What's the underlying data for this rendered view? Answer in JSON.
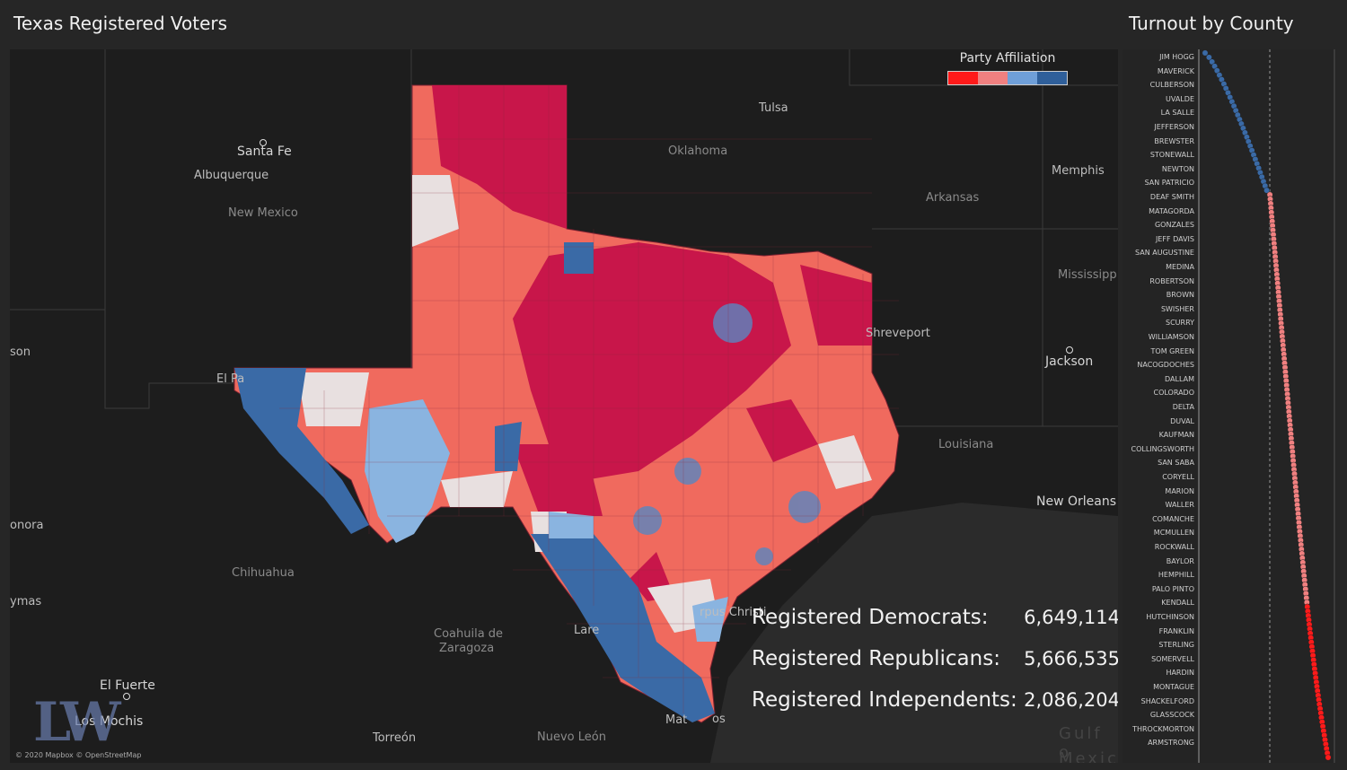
{
  "header": {
    "title": "Texas Registered Voters",
    "side_title": "Turnout by County"
  },
  "legend": {
    "title": "Party Affiliation",
    "colors": [
      "#ff1a1a",
      "#f08080",
      "#6f9fd8",
      "#2f5f9a"
    ]
  },
  "colors": {
    "strong_rep": "#c8164a",
    "lean_rep": "#f06a5e",
    "neutral": "#e8e0e0",
    "lean_dem": "#8ab4e0",
    "strong_dem": "#3a6aa6",
    "background": "#1d1d1d"
  },
  "map": {
    "places": [
      "Santa Fe",
      "Albuquerque",
      "New Mexico",
      "Tulsa",
      "Oklahoma",
      "Memphis",
      "Arkansas",
      "Mississipp",
      "Jackson",
      "Shreveport",
      "Louisiana",
      "New Orleans",
      "Chihuahua",
      "Coahuila de",
      "Zaragoza",
      "El Fuerte",
      "Los Mochis",
      "Torreón",
      "Nuevo León",
      "onora",
      "son",
      "ymas",
      "El Pa",
      "Lare",
      "rpus Christi",
      "Mat",
      "os",
      "Gulf o",
      "Mexic"
    ],
    "copyright": "© 2020 Mapbox © OpenStreetMap",
    "logo": "LW"
  },
  "stats": [
    {
      "label": "Registered Democrats:",
      "value": "6,649,114"
    },
    {
      "label": "Registered Republicans:",
      "value": "5,666,535"
    },
    {
      "label": "Registered Independents:",
      "value": "2,086,204"
    }
  ],
  "turnout": {
    "county_labels": [
      "JIM HOGG",
      "MAVERICK",
      "CULBERSON",
      "UVALDE",
      "LA SALLE",
      "JEFFERSON",
      "BREWSTER",
      "STONEWALL",
      "NEWTON",
      "SAN PATRICIO",
      "DEAF SMITH",
      "MATAGORDA",
      "GONZALES",
      "JEFF DAVIS",
      "SAN AUGUSTINE",
      "MEDINA",
      "ROBERTSON",
      "BROWN",
      "SWISHER",
      "SCURRY",
      "WILLIAMSON",
      "TOM GREEN",
      "NACOGDOCHES",
      "DALLAM",
      "COLORADO",
      "DELTA",
      "DUVAL",
      "KAUFMAN",
      "COLLINGSWORTH",
      "SAN SABA",
      "CORYELL",
      "MARION",
      "WALLER",
      "COMANCHE",
      "MCMULLEN",
      "ROCKWALL",
      "BAYLOR",
      "HEMPHILL",
      "PALO PINTO",
      "KENDALL",
      "HUTCHINSON",
      "FRANKLIN",
      "STERLING",
      "SOMERVELL",
      "HARDIN",
      "MONTAGUE",
      "SHACKELFORD",
      "GLASSCOCK",
      "THROCKMORTON",
      "ARMSTRONG"
    ]
  }
}
